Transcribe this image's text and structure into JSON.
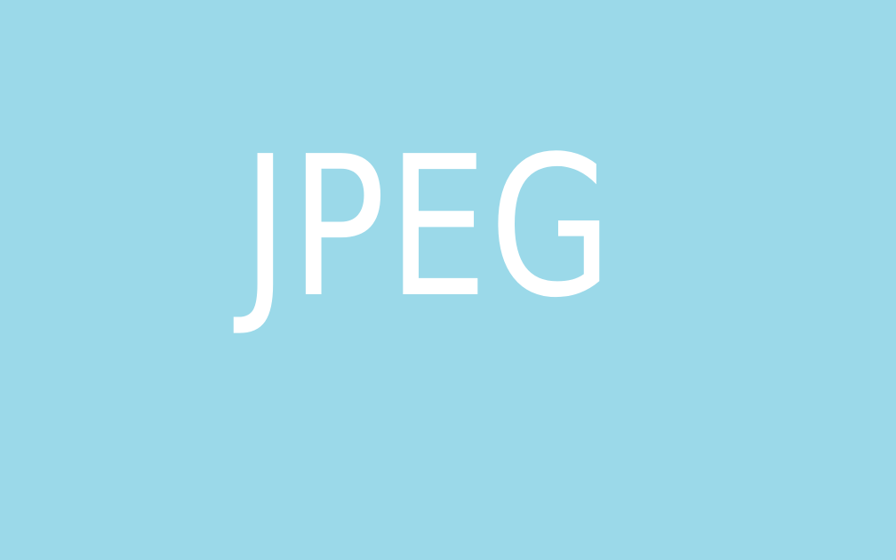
{
  "image": {
    "text": "JPEG",
    "background_color": "#9bd9e9",
    "text_color": "#ffffff"
  }
}
